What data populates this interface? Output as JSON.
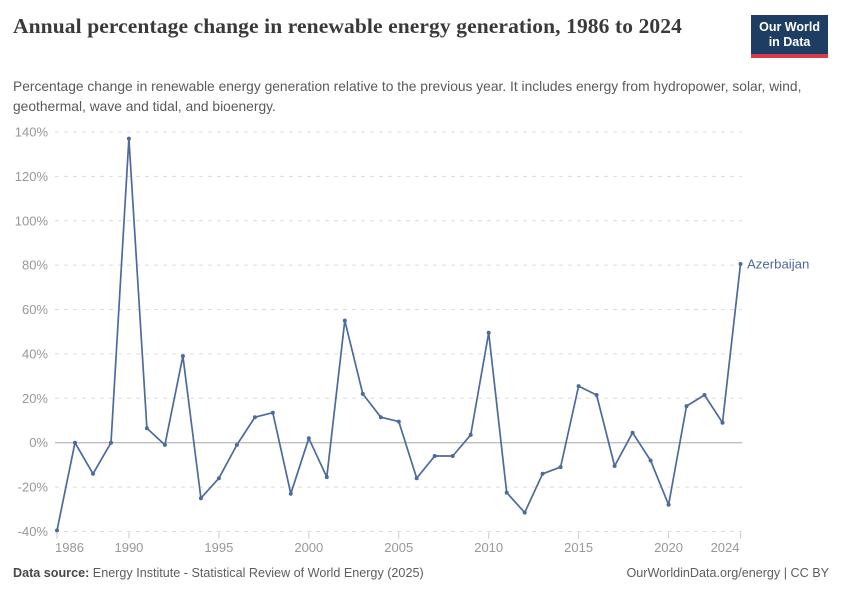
{
  "header": {
    "title": "Annual percentage change in renewable energy generation, 1986 to 2024",
    "subtitle": "Percentage change in renewable energy generation relative to the previous year. It includes energy from hydropower, solar, wind, geothermal, wave and tidal, and bioenergy.",
    "logo": {
      "line1": "Our World",
      "line2": "in Data"
    }
  },
  "footer": {
    "source_label": "Data source:",
    "source_text": " Energy Institute - Statistical Review of World Energy (2025)",
    "right_text": "OurWorldinData.org/energy | CC BY"
  },
  "colors": {
    "series_blue": "#4C6A9C",
    "grid_gray": "#dcdcdc",
    "zero_line_gray": "#a8a8a8",
    "axis_label_gray": "#989898",
    "tick_mark_gray": "#c9c9c9",
    "logo_navy": "#1d3d63",
    "logo_red": "#d73c4c"
  },
  "chart_data": {
    "type": "line",
    "title": "Annual percentage change in renewable energy generation, 1986 to 2024",
    "xlabel": "",
    "ylabel": "",
    "xlim": [
      1986,
      2024
    ],
    "ylim": [
      -40,
      140
    ],
    "grid": "horizontal dashed",
    "legend_position": "end-of-line label",
    "x_ticks": [
      1986,
      1990,
      1995,
      2000,
      2005,
      2010,
      2015,
      2020,
      2024
    ],
    "y_ticks": [
      -40,
      -20,
      0,
      20,
      40,
      60,
      80,
      100,
      120,
      140
    ],
    "y_tick_suffix": "%",
    "series": [
      {
        "name": "Azerbaijan",
        "color": "#4C6A9C",
        "x": [
          1986,
          1987,
          1988,
          1989,
          1990,
          1991,
          1992,
          1993,
          1994,
          1995,
          1996,
          1997,
          1998,
          1999,
          2000,
          2001,
          2002,
          2003,
          2004,
          2005,
          2006,
          2007,
          2008,
          2009,
          2010,
          2011,
          2012,
          2013,
          2014,
          2015,
          2016,
          2017,
          2018,
          2019,
          2020,
          2021,
          2022,
          2023,
          2024
        ],
        "values": [
          -39.5,
          0,
          -14,
          0,
          137,
          6.5,
          -1,
          39,
          -25,
          -16,
          -1,
          11.5,
          13.5,
          -23,
          2,
          -15.5,
          55,
          22,
          11.5,
          9.5,
          -16,
          -6,
          -6,
          3.5,
          49.5,
          -22.5,
          -31.5,
          -14,
          -11,
          25.5,
          21.5,
          -10.5,
          4.5,
          -8,
          -28,
          16.5,
          21.5,
          9,
          80.5
        ]
      }
    ],
    "entity_label": "Azerbaijan"
  }
}
